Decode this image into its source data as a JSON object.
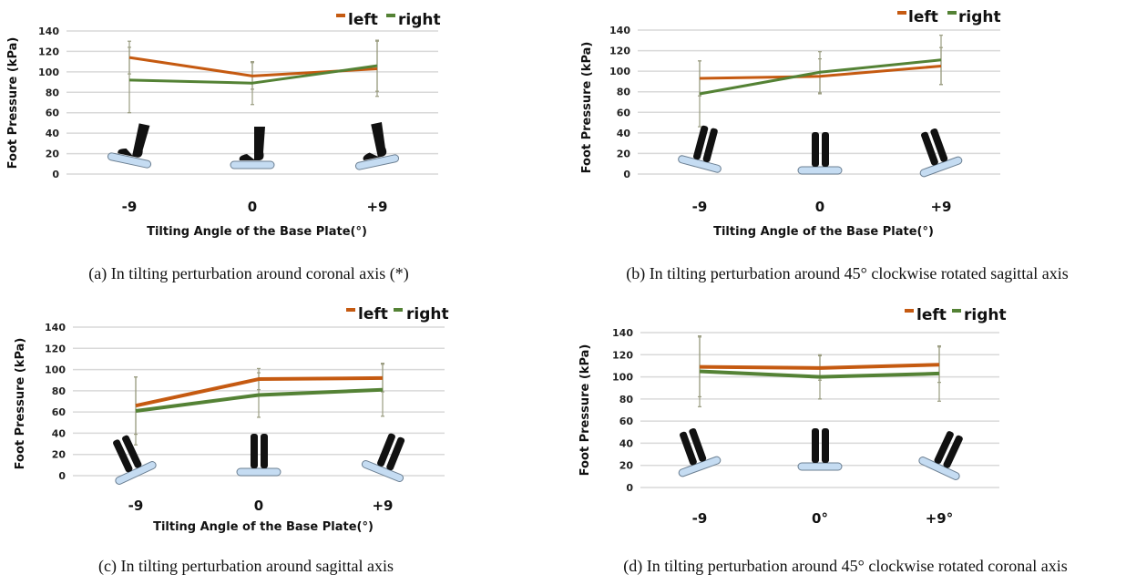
{
  "colors": {
    "left": "#c55a11",
    "right": "#548235",
    "error_bar": "#9a9c80",
    "grid": "#d9d9d9",
    "plate": "#c5dcf2"
  },
  "chart_data": [
    {
      "type": "line",
      "caption": "(a) In tilting perturbation around coronal axis (*)",
      "xlabel": "Tilting Angle of the Base Plate(°)",
      "ylabel": "Foot Pressure (kPa)",
      "categories": [
        "-9",
        "0",
        "+9"
      ],
      "ylim": [
        0,
        140
      ],
      "yticks": [
        "0",
        "20",
        "40",
        "60",
        "80",
        "100",
        "120",
        "140"
      ],
      "grid": true,
      "legend": "top-right",
      "series": [
        {
          "name": "left",
          "values": [
            114,
            96,
            103
          ],
          "error": [
            16,
            13,
            27
          ]
        },
        {
          "name": "right",
          "values": [
            92,
            89,
            106
          ],
          "error": [
            32,
            21,
            25
          ]
        }
      ]
    },
    {
      "type": "line",
      "caption": "(b) In tilting perturbation around 45° clockwise rotated sagittal axis",
      "xlabel": "Tilting Angle of the Base Plate(°)",
      "ylabel": "Foot Pressure (kPa)",
      "categories": [
        "-9",
        "0",
        "+9"
      ],
      "ylim": [
        0,
        140
      ],
      "yticks": [
        "0",
        "20",
        "40",
        "60",
        "80",
        "100",
        "120",
        "140"
      ],
      "grid": true,
      "legend": "top-right",
      "series": [
        {
          "name": "left",
          "values": [
            93,
            95,
            105
          ],
          "error": [
            17,
            17,
            18
          ]
        },
        {
          "name": "right",
          "values": [
            78,
            99,
            111
          ],
          "error": [
            32,
            20,
            24
          ]
        }
      ]
    },
    {
      "type": "line",
      "caption": "(c) In tilting perturbation around sagittal axis",
      "xlabel": "Tilting Angle of the Base Plate(°)",
      "ylabel": "Foot Pressure (kPa)",
      "categories": [
        "-9",
        "0",
        "+9"
      ],
      "ylim": [
        0,
        140
      ],
      "yticks": [
        "0",
        "20",
        "40",
        "60",
        "80",
        "100",
        "120",
        "140"
      ],
      "grid": true,
      "legend": "top-right",
      "series": [
        {
          "name": "left",
          "values": [
            66,
            91,
            92
          ],
          "error": [
            27,
            10,
            13
          ]
        },
        {
          "name": "right",
          "values": [
            61,
            76,
            81
          ],
          "error": [
            32,
            21,
            25
          ]
        }
      ]
    },
    {
      "type": "line",
      "caption": "(d) In tilting perturbation around 45° clockwise rotated coronal axis",
      "xlabel": "",
      "ylabel": "Foot Pressure (kPa)",
      "categories": [
        "-9",
        "0°",
        "+9°"
      ],
      "ylim": [
        0,
        140
      ],
      "yticks": [
        "0",
        "20",
        "40",
        "60",
        "80",
        "100",
        "120",
        "140"
      ],
      "grid": true,
      "legend": "top-right",
      "series": [
        {
          "name": "left",
          "values": [
            109,
            108,
            111
          ],
          "error": [
            27,
            11,
            16
          ]
        },
        {
          "name": "right",
          "values": [
            105,
            100,
            103
          ],
          "error": [
            32,
            20,
            25
          ]
        }
      ]
    }
  ]
}
